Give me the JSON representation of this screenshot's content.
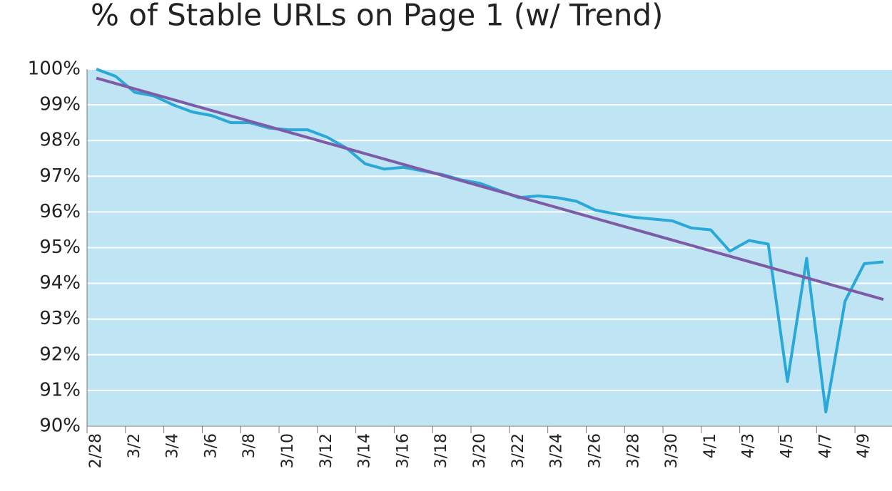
{
  "chart_data": {
    "type": "line",
    "title": "% of Stable URLs on Page 1 (w/ Trend)",
    "categories": [
      "2/28",
      null,
      "3/2",
      null,
      "3/4",
      null,
      "3/6",
      null,
      "3/8",
      null,
      "3/10",
      null,
      "3/12",
      null,
      "3/14",
      null,
      "3/16",
      null,
      "3/18",
      null,
      "3/20",
      null,
      "3/22",
      null,
      "3/24",
      null,
      "3/26",
      null,
      "3/28",
      null,
      "3/30",
      null,
      "4/1",
      null,
      "4/3",
      null,
      "4/5",
      null,
      "4/7",
      null,
      "4/9",
      null
    ],
    "series": [
      {
        "color": "#2aa8d8",
        "values": [
          100,
          99.8,
          99.35,
          99.25,
          99.0,
          98.8,
          98.7,
          98.5,
          98.5,
          98.35,
          98.3,
          98.3,
          98.1,
          97.8,
          97.35,
          97.2,
          97.25,
          97.15,
          97.05,
          96.9,
          96.8,
          96.6,
          96.4,
          96.45,
          96.4,
          96.3,
          96.05,
          95.95,
          95.85,
          95.8,
          95.75,
          95.55,
          95.5,
          94.9,
          95.2,
          95.1,
          91.25,
          94.7,
          90.4,
          93.5,
          94.55,
          94.6
        ]
      }
    ],
    "trend": {
      "color": "#7d5ba6",
      "values": [
        99.75,
        93.55
      ]
    },
    "ylim": [
      90,
      100
    ],
    "yticks": [
      {
        "value": 90,
        "label": "90%"
      },
      {
        "value": 91,
        "label": "91%"
      },
      {
        "value": 92,
        "label": "92%"
      },
      {
        "value": 93,
        "label": "93%"
      },
      {
        "value": 94,
        "label": "94%"
      },
      {
        "value": 95,
        "label": "95%"
      },
      {
        "value": 96,
        "label": "96%"
      },
      {
        "value": 97,
        "label": "97%"
      },
      {
        "value": 98,
        "label": "98%"
      },
      {
        "value": 99,
        "label": "99%"
      },
      {
        "value": 100,
        "label": "100%"
      }
    ],
    "grid": true,
    "background": "#bfe4f3"
  }
}
